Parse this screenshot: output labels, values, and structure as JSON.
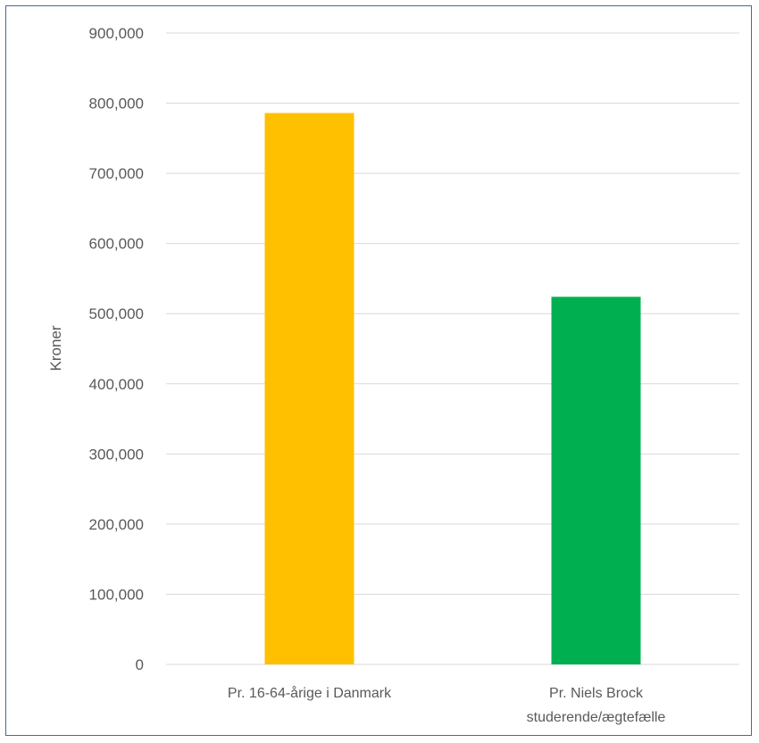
{
  "chart_data": {
    "type": "bar",
    "ylabel": "Kroner",
    "ylim": [
      0,
      900000
    ],
    "yticks": [
      0,
      100000,
      200000,
      300000,
      400000,
      500000,
      600000,
      700000,
      800000,
      900000
    ],
    "ytick_labels": [
      "0",
      "100,000",
      "200,000",
      "300,000",
      "400,000",
      "500,000",
      "600,000",
      "700,000",
      "800,000",
      "900,000"
    ],
    "grid": true,
    "categories": [
      [
        "Pr. 16-64-årige i Danmark"
      ],
      [
        "Pr. Niels Brock",
        "studerende/ægtefælle"
      ]
    ],
    "values": [
      786000,
      524000
    ],
    "colors": [
      "#FFC000",
      "#00B050"
    ]
  }
}
